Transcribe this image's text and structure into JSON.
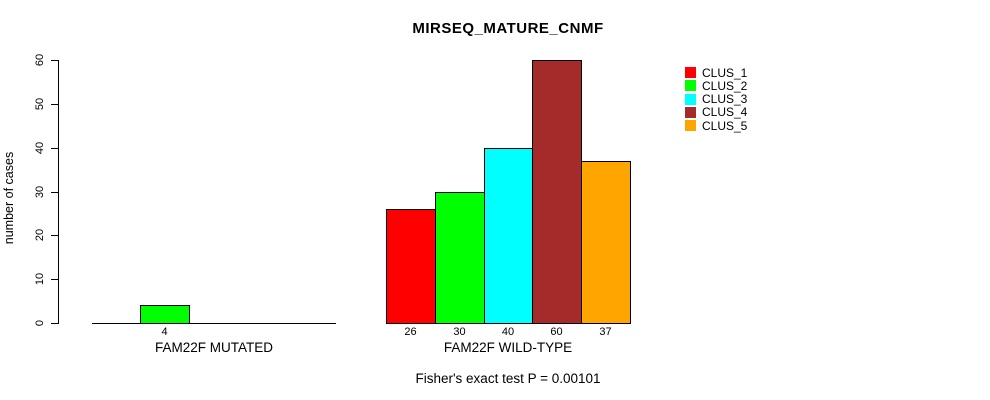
{
  "title": "MIRSEQ_MATURE_CNMF",
  "ylabel": "number of cases",
  "footer": "Fisher's exact test P = 0.00101",
  "chart_data": {
    "type": "bar",
    "title": "MIRSEQ_MATURE_CNMF",
    "xlabel": "",
    "ylabel": "number of cases",
    "ylim": [
      0,
      60
    ],
    "yticks": [
      0,
      10,
      20,
      30,
      40,
      50,
      60
    ],
    "grid": false,
    "legend_position": "right",
    "series": [
      {
        "name": "CLUS_1",
        "color": "#FF0000"
      },
      {
        "name": "CLUS_2",
        "color": "#00FF00"
      },
      {
        "name": "CLUS_3",
        "color": "#00FFFF"
      },
      {
        "name": "CLUS_4",
        "color": "#A52A2A"
      },
      {
        "name": "CLUS_5",
        "color": "#FFA500"
      }
    ],
    "groups": [
      {
        "label": "FAM22F MUTATED",
        "values": [
          0,
          4,
          0,
          0,
          0
        ]
      },
      {
        "label": "FAM22F WILD-TYPE",
        "values": [
          26,
          30,
          40,
          60,
          37
        ]
      }
    ],
    "bar_value_labels": "shown below nonzero bars",
    "annotation": "Fisher's exact test P = 0.00101"
  }
}
